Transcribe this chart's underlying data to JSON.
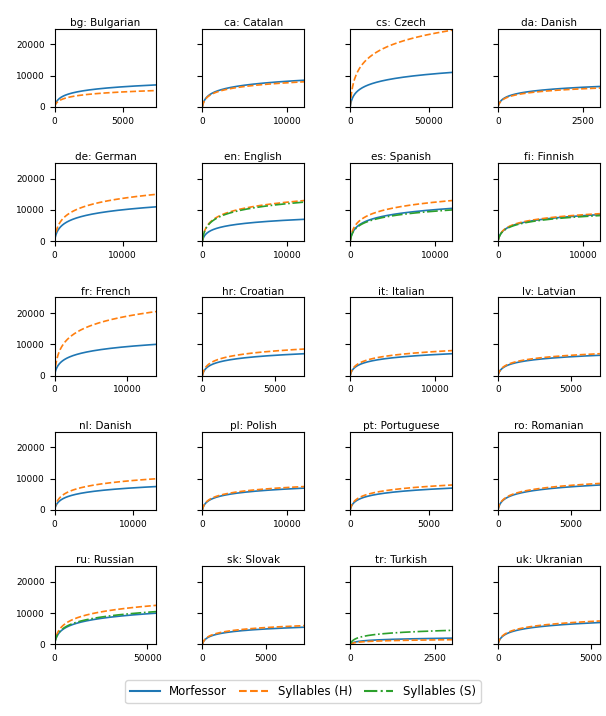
{
  "subplots": [
    {
      "title": "bg: Bulgarian",
      "xlim": [
        0,
        7500
      ],
      "ylim": [
        0,
        25000
      ],
      "xticks": [
        0,
        5000
      ],
      "yticks": [
        0,
        10000,
        20000
      ],
      "morfessor": {
        "xmax": 7500,
        "ymax": 7000
      },
      "syllH": {
        "xmax": 7500,
        "ymax": 5200
      },
      "syllS": null
    },
    {
      "title": "ca: Catalan",
      "xlim": [
        0,
        12000
      ],
      "ylim": [
        0,
        25000
      ],
      "xticks": [
        0,
        10000
      ],
      "yticks": [
        0,
        10000,
        20000
      ],
      "morfessor": {
        "xmax": 12000,
        "ymax": 8500
      },
      "syllH": {
        "xmax": 12000,
        "ymax": 8000
      },
      "syllS": null
    },
    {
      "title": "cs: Czech",
      "xlim": [
        0,
        65000
      ],
      "ylim": [
        0,
        25000
      ],
      "xticks": [
        0,
        50000
      ],
      "yticks": [
        0,
        10000,
        20000
      ],
      "morfessor": {
        "xmax": 65000,
        "ymax": 11000
      },
      "syllH": {
        "xmax": 65000,
        "ymax": 24500
      },
      "syllS": null
    },
    {
      "title": "da: Danish",
      "xlim": [
        0,
        3000
      ],
      "ylim": [
        0,
        25000
      ],
      "xticks": [
        0,
        2500
      ],
      "yticks": [
        0,
        10000,
        20000
      ],
      "morfessor": {
        "xmax": 3000,
        "ymax": 6500
      },
      "syllH": {
        "xmax": 3000,
        "ymax": 6000
      },
      "syllS": null
    },
    {
      "title": "de: German",
      "xlim": [
        0,
        15000
      ],
      "ylim": [
        0,
        25000
      ],
      "xticks": [
        0,
        10000
      ],
      "yticks": [
        0,
        10000,
        20000
      ],
      "morfessor": {
        "xmax": 15000,
        "ymax": 11000
      },
      "syllH": {
        "xmax": 15000,
        "ymax": 15000
      },
      "syllS": null
    },
    {
      "title": "en: English",
      "xlim": [
        0,
        12000
      ],
      "ylim": [
        0,
        25000
      ],
      "xticks": [
        0,
        10000
      ],
      "yticks": [
        0,
        10000,
        20000
      ],
      "morfessor": {
        "xmax": 12000,
        "ymax": 7000
      },
      "syllH": {
        "xmax": 12000,
        "ymax": 13000
      },
      "syllS": {
        "xmax": 12000,
        "ymax": 12500
      }
    },
    {
      "title": "es: Spanish",
      "xlim": [
        0,
        12000
      ],
      "ylim": [
        0,
        25000
      ],
      "xticks": [
        0,
        10000
      ],
      "yticks": [
        0,
        10000,
        20000
      ],
      "morfessor": {
        "xmax": 12000,
        "ymax": 10500
      },
      "syllH": {
        "xmax": 12000,
        "ymax": 13000
      },
      "syllS": {
        "xmax": 12000,
        "ymax": 10000
      }
    },
    {
      "title": "fi: Finnish",
      "xlim": [
        0,
        12000
      ],
      "ylim": [
        0,
        25000
      ],
      "xticks": [
        0,
        10000
      ],
      "yticks": [
        0,
        10000,
        20000
      ],
      "morfessor": {
        "xmax": 12000,
        "ymax": 8500
      },
      "syllH": {
        "xmax": 12000,
        "ymax": 8800
      },
      "syllS": {
        "xmax": 12000,
        "ymax": 8200
      }
    },
    {
      "title": "fr: French",
      "xlim": [
        0,
        14000
      ],
      "ylim": [
        0,
        25000
      ],
      "xticks": [
        0,
        10000
      ],
      "yticks": [
        0,
        10000,
        20000
      ],
      "morfessor": {
        "xmax": 14000,
        "ymax": 10000
      },
      "syllH": {
        "xmax": 14000,
        "ymax": 20500
      },
      "syllS": null
    },
    {
      "title": "hr: Croatian",
      "xlim": [
        0,
        7000
      ],
      "ylim": [
        0,
        25000
      ],
      "xticks": [
        0,
        5000
      ],
      "yticks": [
        0,
        10000,
        20000
      ],
      "morfessor": {
        "xmax": 7000,
        "ymax": 7000
      },
      "syllH": {
        "xmax": 7000,
        "ymax": 8500
      },
      "syllS": null
    },
    {
      "title": "it: Italian",
      "xlim": [
        0,
        12000
      ],
      "ylim": [
        0,
        25000
      ],
      "xticks": [
        0,
        10000
      ],
      "yticks": [
        0,
        10000,
        20000
      ],
      "morfessor": {
        "xmax": 12000,
        "ymax": 7000
      },
      "syllH": {
        "xmax": 12000,
        "ymax": 8000
      },
      "syllS": null
    },
    {
      "title": "lv: Latvian",
      "xlim": [
        0,
        7000
      ],
      "ylim": [
        0,
        25000
      ],
      "xticks": [
        0,
        5000
      ],
      "yticks": [
        0,
        10000,
        20000
      ],
      "morfessor": {
        "xmax": 7000,
        "ymax": 6500
      },
      "syllH": {
        "xmax": 7000,
        "ymax": 7000
      },
      "syllS": null
    },
    {
      "title": "nl: Danish",
      "xlim": [
        0,
        13000
      ],
      "ylim": [
        0,
        25000
      ],
      "xticks": [
        0,
        10000
      ],
      "yticks": [
        0,
        10000,
        20000
      ],
      "morfessor": {
        "xmax": 13000,
        "ymax": 7500
      },
      "syllH": {
        "xmax": 13000,
        "ymax": 10000
      },
      "syllS": null
    },
    {
      "title": "pl: Polish",
      "xlim": [
        0,
        12000
      ],
      "ylim": [
        0,
        25000
      ],
      "xticks": [
        0,
        10000
      ],
      "yticks": [
        0,
        10000,
        20000
      ],
      "morfessor": {
        "xmax": 12000,
        "ymax": 7000
      },
      "syllH": {
        "xmax": 12000,
        "ymax": 7500
      },
      "syllS": null
    },
    {
      "title": "pt: Portuguese",
      "xlim": [
        0,
        6500
      ],
      "ylim": [
        0,
        25000
      ],
      "xticks": [
        0,
        5000
      ],
      "yticks": [
        0,
        10000,
        20000
      ],
      "morfessor": {
        "xmax": 6500,
        "ymax": 7000
      },
      "syllH": {
        "xmax": 6500,
        "ymax": 8000
      },
      "syllS": null
    },
    {
      "title": "ro: Romanian",
      "xlim": [
        0,
        7000
      ],
      "ylim": [
        0,
        25000
      ],
      "xticks": [
        0,
        5000
      ],
      "yticks": [
        0,
        10000,
        20000
      ],
      "morfessor": {
        "xmax": 7000,
        "ymax": 8000
      },
      "syllH": {
        "xmax": 7000,
        "ymax": 8500
      },
      "syllS": null
    },
    {
      "title": "ru: Russian",
      "xlim": [
        0,
        55000
      ],
      "ylim": [
        0,
        25000
      ],
      "xticks": [
        0,
        50000
      ],
      "yticks": [
        0,
        10000,
        20000
      ],
      "morfessor": {
        "xmax": 55000,
        "ymax": 10000
      },
      "syllH": {
        "xmax": 55000,
        "ymax": 12500
      },
      "syllS": {
        "xmax": 55000,
        "ymax": 10500
      }
    },
    {
      "title": "sk: Slovak",
      "xlim": [
        0,
        8000
      ],
      "ylim": [
        0,
        25000
      ],
      "xticks": [
        0,
        5000
      ],
      "yticks": [
        0,
        10000,
        20000
      ],
      "morfessor": {
        "xmax": 8000,
        "ymax": 5500
      },
      "syllH": {
        "xmax": 8000,
        "ymax": 6000
      },
      "syllS": null
    },
    {
      "title": "tr: Turkish",
      "xlim": [
        0,
        3000
      ],
      "ylim": [
        0,
        25000
      ],
      "xticks": [
        0,
        2500
      ],
      "yticks": [
        0,
        10000,
        20000
      ],
      "morfessor": {
        "xmax": 3000,
        "ymax": 2000
      },
      "syllH": {
        "xmax": 3000,
        "ymax": 1500
      },
      "syllS": {
        "xmax": 3000,
        "ymax": 4500
      }
    },
    {
      "title": "uk: Ukranian",
      "xlim": [
        0,
        5500
      ],
      "ylim": [
        0,
        25000
      ],
      "xticks": [
        0,
        5000
      ],
      "yticks": [
        0,
        10000,
        20000
      ],
      "morfessor": {
        "xmax": 5500,
        "ymax": 7000
      },
      "syllH": {
        "xmax": 5500,
        "ymax": 7500
      },
      "syllS": null
    }
  ],
  "colors": {
    "morfessor": "#1f77b4",
    "syllH": "#ff7f0e",
    "syllS": "#2ca02c"
  },
  "n_rows": 5,
  "n_cols": 4,
  "figsize": [
    6.06,
    7.16
  ],
  "dpi": 100
}
